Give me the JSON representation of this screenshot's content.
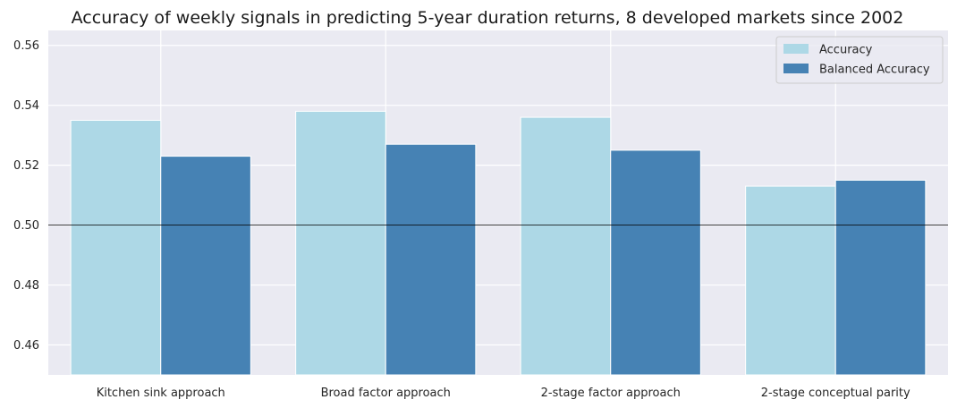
{
  "chart_data": {
    "type": "bar",
    "title": "Accuracy of weekly signals in predicting 5-year duration returns, 8 developed markets since 2002",
    "xlabel": "",
    "ylabel": "",
    "categories": [
      "Kitchen sink approach",
      "Broad factor approach",
      "2-stage factor approach",
      "2-stage conceptual parity"
    ],
    "series": [
      {
        "name": "Accuracy",
        "color": "#add8e6",
        "values": [
          0.535,
          0.538,
          0.536,
          0.513
        ]
      },
      {
        "name": "Balanced Accuracy",
        "color": "#4682b4",
        "values": [
          0.523,
          0.527,
          0.525,
          0.515
        ]
      }
    ],
    "ylim": [
      0.45,
      0.565
    ],
    "yticks": [
      0.46,
      0.48,
      0.5,
      0.52,
      0.54,
      0.56
    ],
    "ytick_labels": [
      "0.46",
      "0.48",
      "0.50",
      "0.52",
      "0.54",
      "0.56"
    ],
    "reference_line": 0.5,
    "grid": true,
    "background": "#eaeaf2",
    "legend_position": "top-right"
  }
}
